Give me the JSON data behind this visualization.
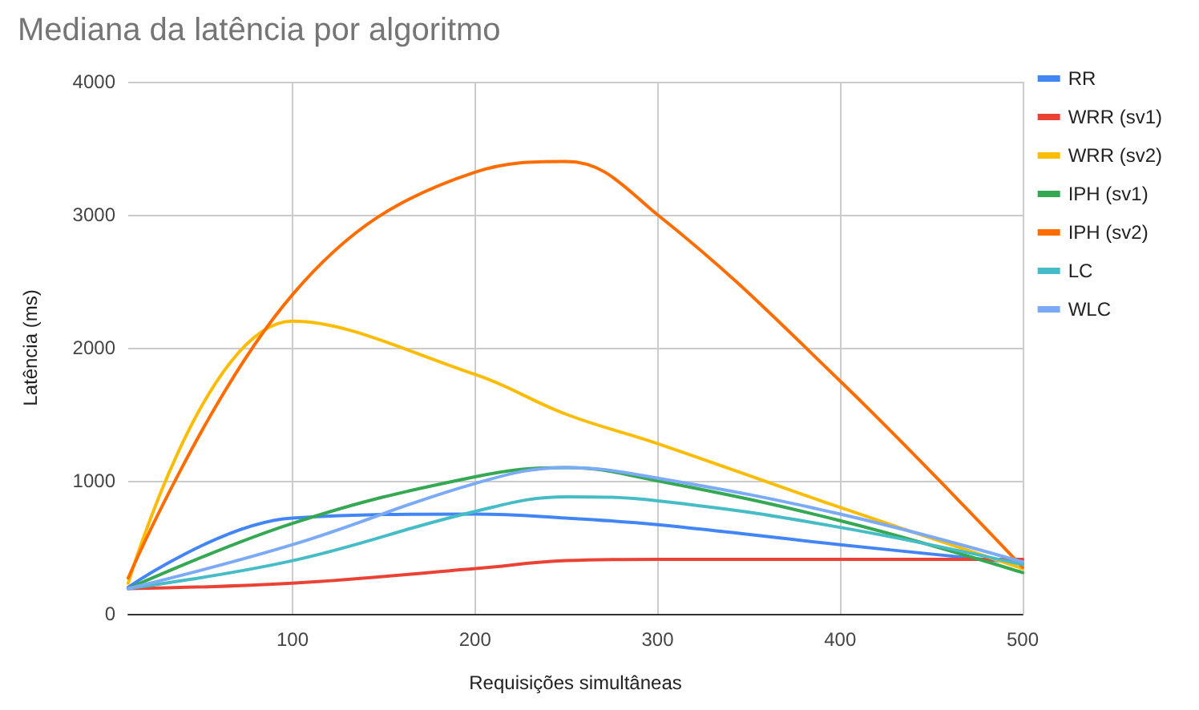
{
  "chart_data": {
    "type": "line",
    "title": "Mediana da latência por algoritmo",
    "xlabel": "Requisições simultâneas",
    "ylabel": "Latência (ms)",
    "x": [
      10,
      100,
      200,
      250,
      300,
      400,
      500
    ],
    "series": [
      {
        "name": "RR",
        "color": "#4285f4",
        "values": [
          200,
          720,
          750,
          720,
          670,
          520,
          380
        ]
      },
      {
        "name": "WRR (sv1)",
        "color": "#ea4335",
        "values": [
          190,
          230,
          340,
          400,
          410,
          410,
          410
        ]
      },
      {
        "name": "WRR (sv2)",
        "color": "#fbbc04",
        "values": [
          230,
          2200,
          1800,
          1500,
          1280,
          800,
          340
        ]
      },
      {
        "name": "IPH (sv1)",
        "color": "#34a853",
        "values": [
          190,
          680,
          1030,
          1100,
          1000,
          700,
          310
        ]
      },
      {
        "name": "IPH (sv2)",
        "color": "#ff6d01",
        "values": [
          270,
          2400,
          3320,
          3400,
          3000,
          1750,
          350
        ]
      },
      {
        "name": "LC",
        "color": "#46bdc6",
        "values": [
          190,
          400,
          770,
          880,
          850,
          650,
          370
        ]
      },
      {
        "name": "WLC",
        "color": "#7baaf7",
        "values": [
          190,
          520,
          980,
          1100,
          1020,
          750,
          390
        ]
      }
    ],
    "xlim": [
      10,
      500
    ],
    "xticks": [
      100,
      200,
      300,
      400,
      500
    ],
    "ylim": [
      0,
      4000
    ],
    "yticks": [
      0,
      1000,
      2000,
      3000,
      4000
    ],
    "grid": true,
    "legend": "right",
    "marker": "none",
    "line_style": "solid"
  }
}
